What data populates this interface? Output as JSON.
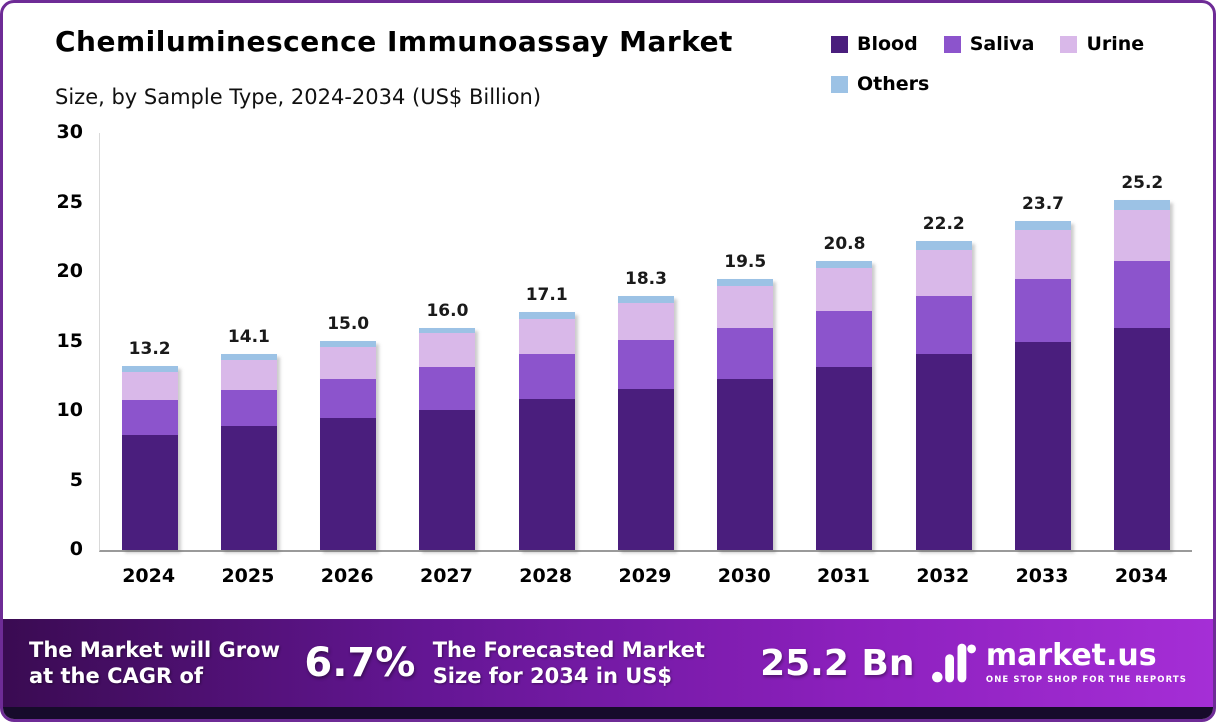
{
  "title": "Chemiluminescence Immunoassay Market",
  "subtitle": "Size, by Sample Type, 2024-2034 (US$ Billion)",
  "chart_data": {
    "type": "bar",
    "stacked": true,
    "title": "Chemiluminescence Immunoassay Market Size, by Sample Type, 2024-2034 (US$ Billion)",
    "categories": [
      "2024",
      "2025",
      "2026",
      "2027",
      "2028",
      "2029",
      "2030",
      "2031",
      "2032",
      "2033",
      "2034"
    ],
    "series": [
      {
        "name": "Blood",
        "color": "#4A1E7D",
        "values": [
          8.3,
          8.9,
          9.5,
          10.1,
          10.9,
          11.6,
          12.3,
          13.2,
          14.1,
          15.0,
          16.0
        ]
      },
      {
        "name": "Saliva",
        "color": "#8C54CC",
        "values": [
          2.5,
          2.6,
          2.8,
          3.1,
          3.2,
          3.5,
          3.7,
          4.0,
          4.2,
          4.5,
          4.8
        ]
      },
      {
        "name": "Urine",
        "color": "#D9B8E9",
        "values": [
          2.0,
          2.2,
          2.3,
          2.4,
          2.5,
          2.7,
          3.0,
          3.1,
          3.3,
          3.5,
          3.7
        ]
      },
      {
        "name": "Others",
        "color": "#9CC2E5",
        "values": [
          0.4,
          0.4,
          0.4,
          0.4,
          0.5,
          0.5,
          0.5,
          0.5,
          0.6,
          0.7,
          0.7
        ]
      }
    ],
    "totals": [
      13.2,
      14.1,
      15.0,
      16.0,
      17.1,
      18.3,
      19.5,
      20.8,
      22.2,
      23.7,
      25.2
    ],
    "ylim": [
      0,
      30
    ],
    "yticks": [
      0,
      5,
      10,
      15,
      20,
      25,
      30
    ],
    "legend_position": "top-right",
    "grid": false
  },
  "footer": {
    "cagr_label": "The Market will Grow at the CAGR of",
    "cagr_value": "6.7%",
    "forecast_label": "The Forecasted Market Size for 2034 in US$",
    "forecast_value": "25.2 Bn",
    "brand": "market.us",
    "brand_tagline": "ONE STOP SHOP FOR THE REPORTS"
  }
}
